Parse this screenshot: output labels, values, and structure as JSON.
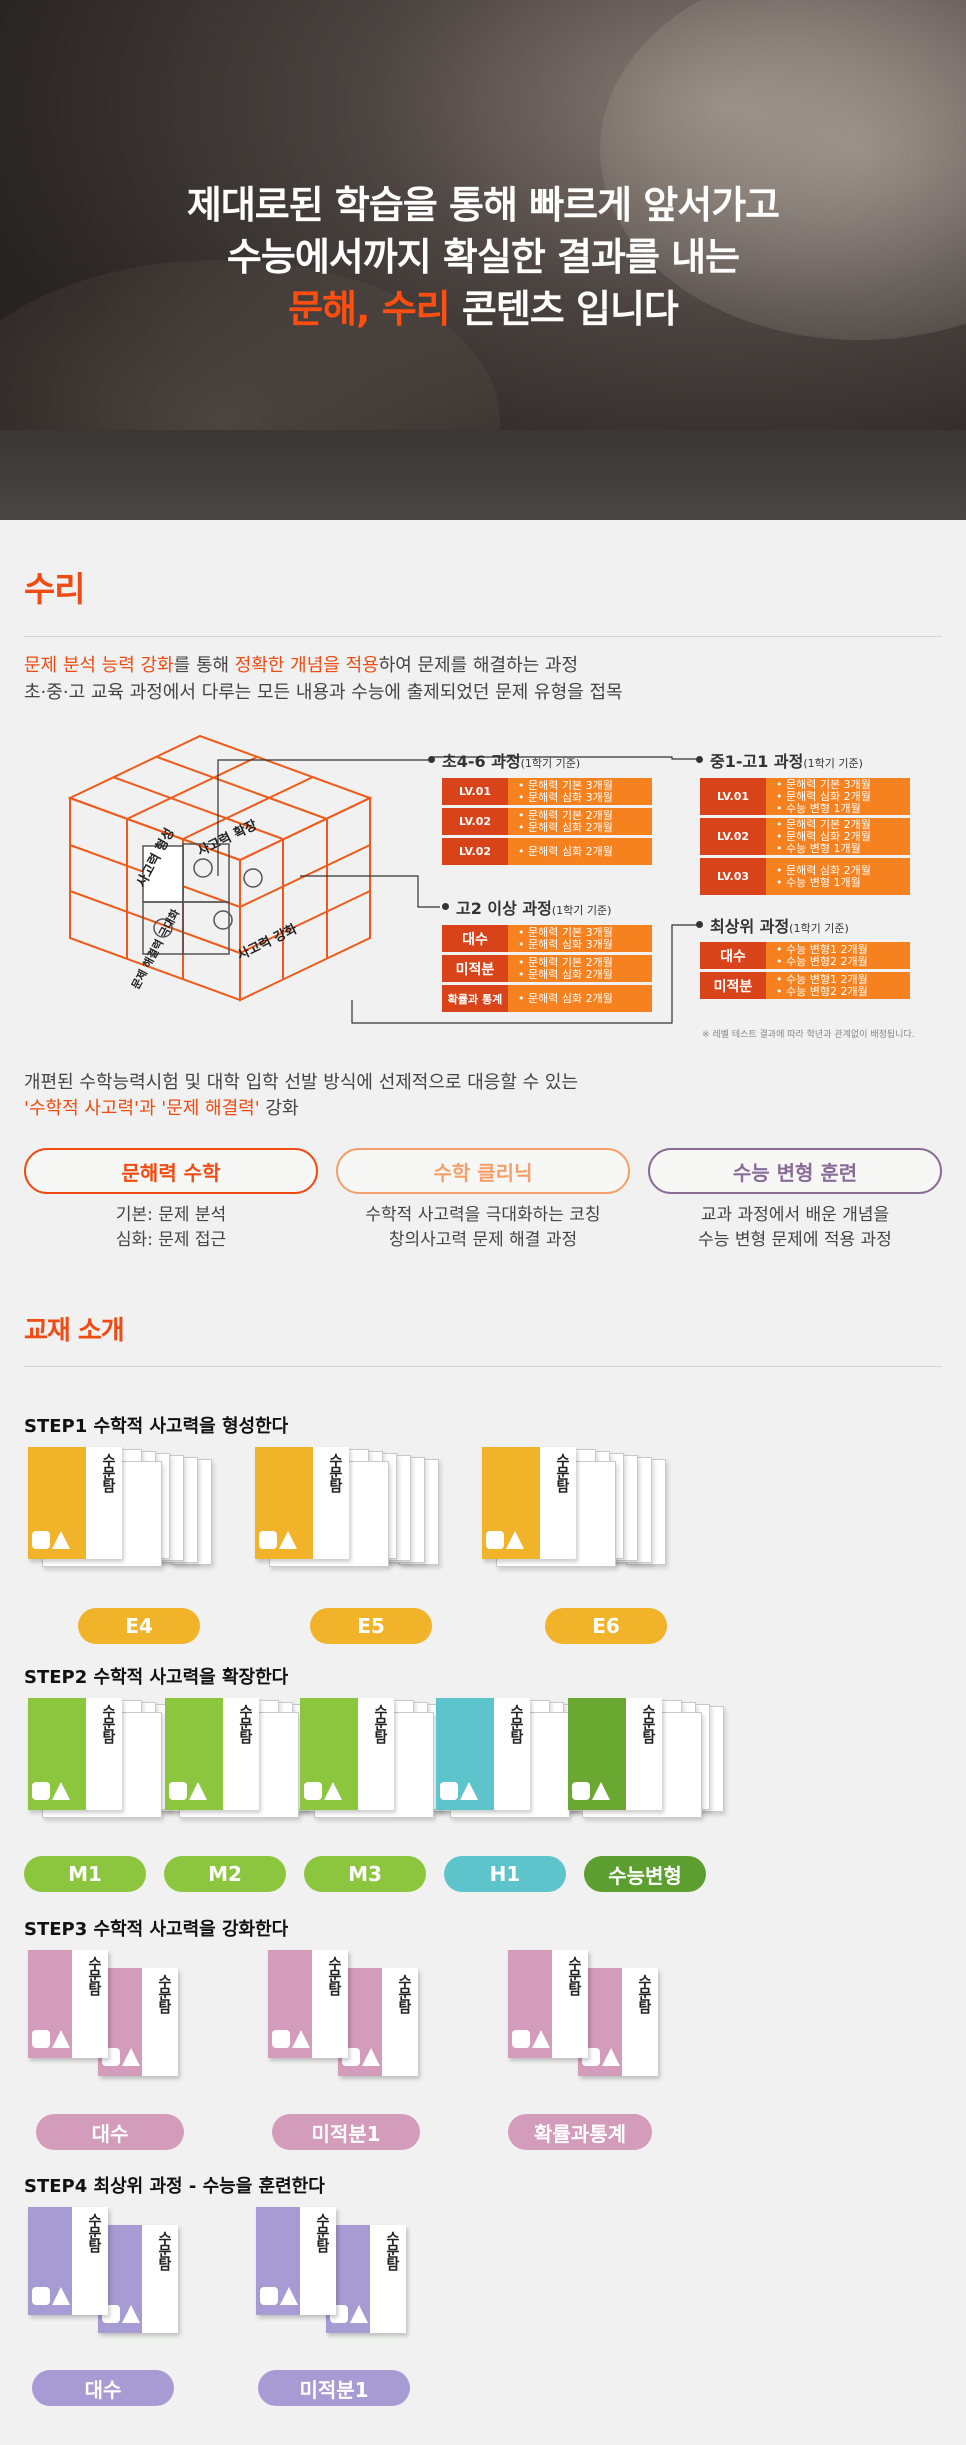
{
  "hero": {
    "line1": "제대로된 학습을 통해 빠르게 앞서가고",
    "line2": "수능에서까지 확실한 결과를 내는",
    "line3_highlight": "문해, 수리",
    "line3_rest": " 콘텐츠 입니다"
  },
  "math_section": {
    "title": "수리",
    "intro1_a": "문제 분석 능력 강화",
    "intro1_b": "를 통해 ",
    "intro1_c": "정확한 개념을 적용",
    "intro1_d": "하여 문제를 해결하는 과정",
    "intro2": "초·중·고 교육 과정에서 다루는 모든 내용과 수능에 출제되었던 문제 유형을 접목",
    "cube_labels": [
      "사고력 형성",
      "사고력 확장",
      "문제 해결력 극대화",
      "사고력 강화"
    ],
    "courses": [
      {
        "title": "초4-6 과정",
        "sub": "(1학기 기준)",
        "rows": [
          {
            "lv": "LV.01",
            "lines": [
              "• 문해력 기본 3개월",
              "• 문해력 심화 3개월"
            ]
          },
          {
            "lv": "LV.02",
            "lines": [
              "• 문해력 기본 2개월",
              "• 문해력 심화 2개월"
            ]
          },
          {
            "lv": "LV.02",
            "lines": [
              "• 문해력 심화 2개월"
            ]
          }
        ]
      },
      {
        "title": "중1-고1 과정",
        "sub": "(1학기 기준)",
        "rows": [
          {
            "lv": "LV.01",
            "lines": [
              "• 문해력 기본 3개월",
              "• 문해력 심화 2개월",
              "• 수능 변형 1개월"
            ]
          },
          {
            "lv": "LV.02",
            "lines": [
              "• 문해력 기본 2개월",
              "• 문해력 심화 2개월",
              "• 수능 변형 1개월"
            ]
          },
          {
            "lv": "LV.03",
            "lines": [
              "• 문해력 심화 2개월",
              "• 수능 변형 1개월"
            ]
          }
        ]
      },
      {
        "title": "고2 이상 과정",
        "sub": "(1학기 기준)",
        "rows": [
          {
            "lv": "대수",
            "lines": [
              "• 문해력 기본 3개월",
              "• 문해력 심화 3개월"
            ]
          },
          {
            "lv": "미적분",
            "lines": [
              "• 문해력 기본 2개월",
              "• 문해력 심화 2개월"
            ]
          },
          {
            "lv": "확률과 통계",
            "lines": [
              "• 문해력 심화 2개월"
            ]
          }
        ]
      },
      {
        "title": "최상위 과정",
        "sub": "(1학기 기준)",
        "rows": [
          {
            "lv": "대수",
            "lines": [
              "• 수능 변형1 2개월",
              "• 수능 변형2 2개월"
            ]
          },
          {
            "lv": "미적분",
            "lines": [
              "• 수능 변형1 2개월",
              "• 수능 변형2 2개월"
            ]
          }
        ]
      }
    ],
    "note": "※ 레벨 테스트 결과에 따라 학년과 관계없이 배정됩니다.",
    "lead1": "개편된 수학능력시험 및 대학 입학 선발 방식에 선제적으로 대응할 수 있는",
    "lead2_a": "'수학적 사고력'과 '문제 해결력'",
    "lead2_b": " 강화",
    "pills": [
      {
        "label": "문해력 수학",
        "desc1": "기본: 문제 분석",
        "desc2": "심화: 문제 접근",
        "color": "#ef4b12"
      },
      {
        "label": "수학 클리닉",
        "desc1": "수학적 사고력을 극대화하는 코칭",
        "desc2": "창의사고력 문제 해결 과정",
        "color": "#f5a06a"
      },
      {
        "label": "수능 변형 훈련",
        "desc1": "교과 과정에서 배운 개념을",
        "desc2": "수능 변형 문제에 적용 과정",
        "color": "#8a6d97"
      }
    ]
  },
  "textbooks": {
    "title": "교재 소개",
    "book_title": "수문탐",
    "steps": [
      {
        "title": "STEP1 수학적 사고력을 형성한다",
        "tags": [
          {
            "label": "E4",
            "color": "#f0b32a"
          },
          {
            "label": "E5",
            "color": "#f0b32a"
          },
          {
            "label": "E6",
            "color": "#f0b32a"
          }
        ]
      },
      {
        "title": "STEP2 수학적 사고력을 확장한다",
        "tags": [
          {
            "label": "M1",
            "color": "#8cc63f"
          },
          {
            "label": "M2",
            "color": "#8cc63f"
          },
          {
            "label": "M3",
            "color": "#8cc63f"
          },
          {
            "label": "H1",
            "color": "#5ec4cc"
          },
          {
            "label": "수능변형",
            "color": "#5c9e2f"
          }
        ]
      },
      {
        "title": "STEP3 수학적 사고력을 강화한다",
        "tags": [
          {
            "label": "대수",
            "color": "#d39cba"
          },
          {
            "label": "미적분1",
            "color": "#d39cba"
          },
          {
            "label": "확률과통계",
            "color": "#d39cba"
          }
        ]
      },
      {
        "title": "STEP4 최상위 과정 - 수능을 훈련한다",
        "tags": [
          {
            "label": "대수",
            "color": "#a79bd4"
          },
          {
            "label": "미적분1",
            "color": "#a79bd4"
          }
        ]
      }
    ]
  }
}
